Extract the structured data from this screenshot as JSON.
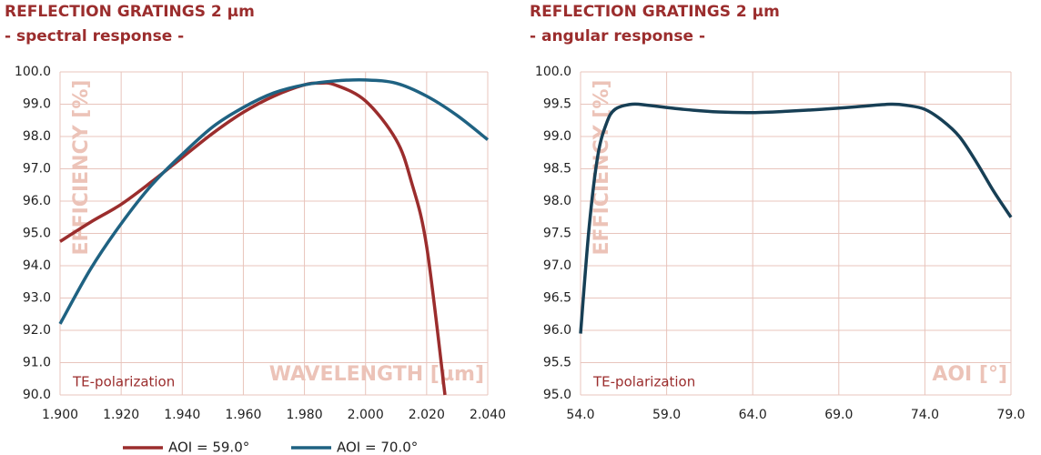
{
  "chart_data": [
    {
      "type": "line",
      "title": "REFLECTION GRATINGS 2 µm",
      "subtitle": "- spectral response -",
      "y_label": "EFFICIENCY [%]",
      "x_label": "WAVELENGTH [µm]",
      "annotation": "TE-polarization",
      "xlim": [
        1.9,
        2.04
      ],
      "xticks": [
        {
          "value": 1.9,
          "label": "1.900"
        },
        {
          "value": 1.92,
          "label": "1.920"
        },
        {
          "value": 1.94,
          "label": "1.940"
        },
        {
          "value": 1.96,
          "label": "1.960"
        },
        {
          "value": 1.98,
          "label": "1.980"
        },
        {
          "value": 2.0,
          "label": "2.000"
        },
        {
          "value": 2.02,
          "label": "2.020"
        },
        {
          "value": 2.04,
          "label": "2.040"
        }
      ],
      "ylim": [
        90,
        100
      ],
      "yticks": [
        {
          "value": 90,
          "label": "90.0"
        },
        {
          "value": 91,
          "label": "91.0"
        },
        {
          "value": 92,
          "label": "92.0"
        },
        {
          "value": 93,
          "label": "93.0"
        },
        {
          "value": 94,
          "label": "94.0"
        },
        {
          "value": 95,
          "label": "95.0"
        },
        {
          "value": 96,
          "label": "96.0"
        },
        {
          "value": 97,
          "label": "97.0"
        },
        {
          "value": 98,
          "label": "98.0"
        },
        {
          "value": 99,
          "label": "99.0"
        },
        {
          "value": 100,
          "label": "100.0"
        }
      ],
      "grid": true,
      "legend": "bottom",
      "series": [
        {
          "name": "AOI = 59.0°",
          "color": "#9b2d2d",
          "x": [
            1.9,
            1.91,
            1.92,
            1.93,
            1.94,
            1.95,
            1.96,
            1.97,
            1.98,
            1.985,
            1.99,
            2.0,
            2.01,
            2.015,
            2.02,
            2.026
          ],
          "values": [
            94.75,
            95.35,
            95.9,
            96.6,
            97.35,
            98.1,
            98.75,
            99.25,
            99.6,
            99.65,
            99.6,
            99.1,
            97.9,
            96.6,
            94.6,
            90.0
          ]
        },
        {
          "name": "AOI = 70.0°",
          "color": "#1f6282",
          "x": [
            1.9,
            1.91,
            1.92,
            1.93,
            1.94,
            1.95,
            1.96,
            1.97,
            1.98,
            1.99,
            2.0,
            2.01,
            2.02,
            2.03,
            2.04
          ],
          "values": [
            92.2,
            93.9,
            95.3,
            96.5,
            97.45,
            98.3,
            98.9,
            99.35,
            99.6,
            99.72,
            99.75,
            99.65,
            99.25,
            98.65,
            97.9
          ]
        }
      ]
    },
    {
      "type": "line",
      "title": "REFLECTION GRATINGS 2 µm",
      "subtitle": "- angular response -",
      "y_label": "EFFICIENCY [%]",
      "x_label": "AOI [°]",
      "annotation": "TE-polarization",
      "xlim": [
        54,
        79
      ],
      "xticks": [
        {
          "value": 54,
          "label": "54.0"
        },
        {
          "value": 59,
          "label": "59.0"
        },
        {
          "value": 64,
          "label": "64.0"
        },
        {
          "value": 69,
          "label": "69.0"
        },
        {
          "value": 74,
          "label": "74.0"
        },
        {
          "value": 79,
          "label": "79.0"
        }
      ],
      "ylim": [
        95,
        100
      ],
      "yticks": [
        {
          "value": 95,
          "label": "95.0"
        },
        95.5,
        {
          "value": 96,
          "label": "96.0"
        },
        96.5,
        {
          "value": 97,
          "label": "97.0"
        },
        97.5,
        {
          "value": 98,
          "label": "98.0"
        },
        98.5,
        {
          "value": 99,
          "label": "99.0"
        },
        99.5,
        {
          "value": 100,
          "label": "100.0"
        }
      ],
      "grid": true,
      "series": [
        {
          "color": "#173f55",
          "x": [
            54,
            54.5,
            55,
            55.5,
            56,
            57,
            58,
            60,
            62,
            64,
            66,
            68,
            70,
            72,
            73,
            74,
            75,
            76,
            77,
            78,
            79
          ],
          "values": [
            95.95,
            97.6,
            98.7,
            99.2,
            99.42,
            99.5,
            99.48,
            99.42,
            99.38,
            99.37,
            99.39,
            99.42,
            99.46,
            99.5,
            99.48,
            99.42,
            99.25,
            99.0,
            98.6,
            98.15,
            97.75
          ]
        }
      ]
    }
  ]
}
